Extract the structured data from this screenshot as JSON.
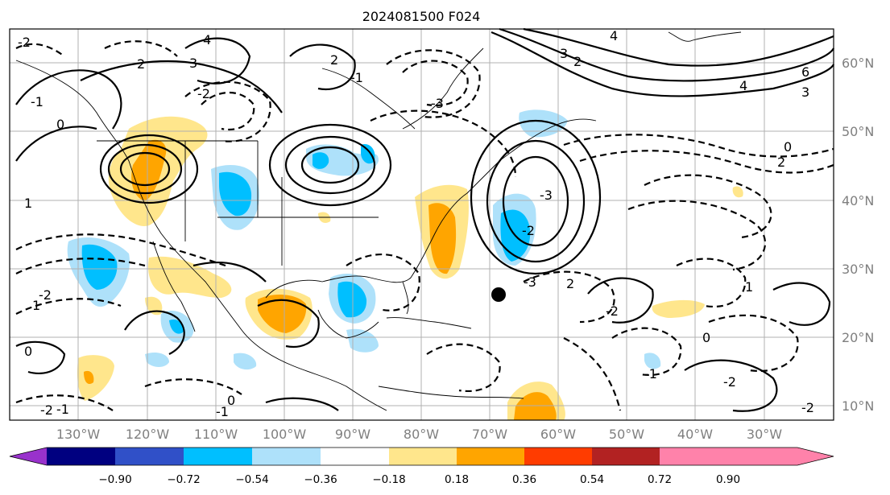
{
  "title": "2024081500 F024",
  "map": {
    "lat_labels": [
      "60°N",
      "50°N",
      "40°N",
      "30°N",
      "20°N",
      "10°N"
    ],
    "lon_labels": [
      "130°W",
      "120°W",
      "110°W",
      "100°W",
      "90°W",
      "80°W",
      "70°W",
      "60°W",
      "50°W",
      "40°W",
      "30°W"
    ],
    "contour_labels": [
      "-2",
      "-1",
      "0",
      "1",
      "2",
      "3",
      "4",
      "-2",
      "-3",
      "2",
      "-1",
      "4",
      "3",
      "2",
      "6",
      "4",
      "3",
      "0",
      "2",
      "-3",
      "-2",
      "-3",
      "1",
      "-2",
      "0",
      "-1",
      "-2",
      "-1",
      "-2",
      "-1",
      "0",
      "-2",
      "-2",
      "2",
      "1",
      "0"
    ]
  },
  "colorbar": {
    "ticks": [
      "−0.90",
      "−0.72",
      "−0.54",
      "−0.36",
      "−0.18",
      "0.18",
      "0.36",
      "0.54",
      "0.72",
      "0.90"
    ],
    "colors": [
      "#9932cc",
      "#000080",
      "#3050c8",
      "#00bfff",
      "#aee1fa",
      "#ffffff",
      "#ffe68c",
      "#ffa500",
      "#ff3c00",
      "#b22222",
      "#ff82aa"
    ]
  },
  "colors": {
    "shade_yellow": "#ffe68c",
    "shade_orange": "#ffa500",
    "shade_lightblue": "#aee1fa",
    "shade_blue": "#00bfff",
    "marker": "#000000"
  }
}
